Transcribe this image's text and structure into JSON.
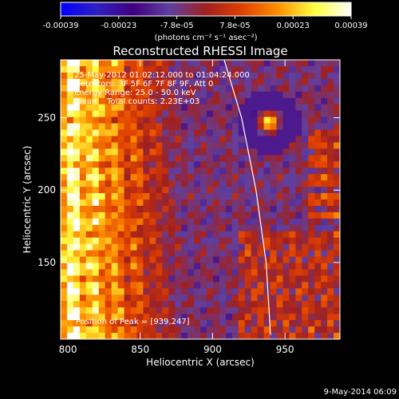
{
  "chart_data": {
    "type": "heatmap",
    "title": "Reconstructed RHESSI Image",
    "xlabel": "Heliocentric X (arcsec)",
    "ylabel": "Heliocentric Y (arcsec)",
    "xlim": [
      795,
      988
    ],
    "ylim": [
      97,
      290
    ],
    "xticks": [
      800,
      850,
      900,
      950
    ],
    "yticks": [
      150,
      200,
      250
    ],
    "colorbar": {
      "label": "(photons cm⁻² s⁻¹ asec⁻²)",
      "min": -0.00039,
      "max": 0.00039,
      "ticks": [
        "-0.00039",
        "-0.00023",
        "-7.8e-05",
        "7.8e-05",
        "0.00023",
        "0.00039"
      ],
      "colormap": [
        "#0000ff",
        "#3020c0",
        "#400080",
        "#6040a0",
        "#a02020",
        "#e04000",
        "#ff9000",
        "#ffff40",
        "#ffffff"
      ]
    },
    "annotations": [
      "25-May-2012 01:02:12.000 to 01:04:24.000",
      "Detectors: 3F 5F 6F 7F 8F 9F, Att 0",
      "Energy Range: 25.0 - 50.0 keV",
      "Clean    Total counts: 2.23E+03"
    ],
    "peak_label": "Position of Peak = [939,247]",
    "peak": {
      "x": 939,
      "y": 247
    },
    "limb": [
      [
        908,
        290
      ],
      [
        920,
        250
      ],
      [
        930,
        200
      ],
      [
        937,
        150
      ],
      [
        940,
        100
      ]
    ],
    "limb_color": "#ffffff"
  },
  "footer": {
    "date": "9-May-2014 06:09"
  }
}
